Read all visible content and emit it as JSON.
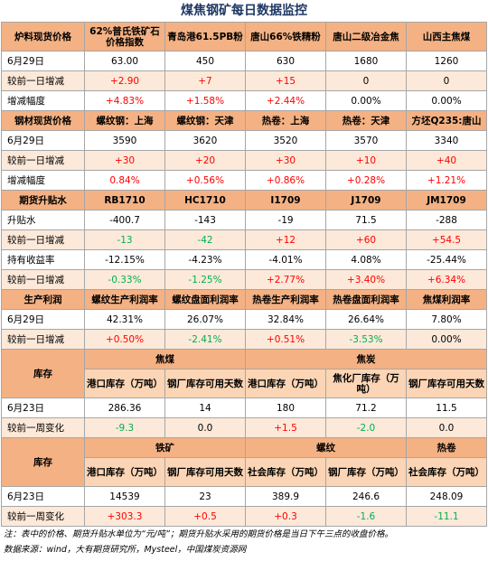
{
  "title": "煤焦钢矿每日数据监控",
  "sections": [
    {
      "header": [
        "炉料现货价格",
        "62%普氏铁矿石价格指数",
        "青岛港61.5PB粉",
        "唐山66%铁精粉",
        "唐山二级冶金焦",
        "山西主焦煤"
      ],
      "rows": [
        {
          "cells": [
            "6月29日",
            "63.00",
            "450",
            "630",
            "1680",
            "1260"
          ],
          "colors": [
            "#000000",
            "#000000",
            "#000000",
            "#000000",
            "#000000",
            "#000000"
          ]
        },
        {
          "cells": [
            "较前一日增减",
            "+2.90",
            "+7",
            "+15",
            "0",
            "0"
          ],
          "colors": [
            "#000000",
            "#ff0000",
            "#ff0000",
            "#ff0000",
            "#000000",
            "#000000"
          ]
        },
        {
          "cells": [
            "增减幅度",
            "+4.83%",
            "+1.58%",
            "+2.44%",
            "0.00%",
            "0.00%"
          ],
          "colors": [
            "#000000",
            "#ff0000",
            "#ff0000",
            "#ff0000",
            "#000000",
            "#000000"
          ]
        }
      ]
    },
    {
      "header": [
        "钢材现货价格",
        "螺纹钢：上海",
        "螺纹钢：天津",
        "热卷：上海",
        "热卷：天津",
        "方坯Q235:唐山"
      ],
      "rows": [
        {
          "cells": [
            "6月29日",
            "3590",
            "3620",
            "3520",
            "3570",
            "3340"
          ],
          "colors": [
            "#000000",
            "#000000",
            "#000000",
            "#000000",
            "#000000",
            "#000000"
          ]
        },
        {
          "cells": [
            "较前一日增减",
            "+30",
            "+20",
            "+30",
            "+10",
            "+40"
          ],
          "colors": [
            "#000000",
            "#ff0000",
            "#ff0000",
            "#ff0000",
            "#ff0000",
            "#ff0000"
          ]
        },
        {
          "cells": [
            "增减幅度",
            "0.84%",
            "+0.56%",
            "+0.86%",
            "+0.28%",
            "+1.21%"
          ],
          "colors": [
            "#000000",
            "#ff0000",
            "#ff0000",
            "#ff0000",
            "#ff0000",
            "#ff0000"
          ]
        }
      ]
    },
    {
      "header": [
        "期货升贴水",
        "RB1710",
        "HC1710",
        "I1709",
        "J1709",
        "JM1709"
      ],
      "rows": [
        {
          "cells": [
            "升贴水",
            "-400.7",
            "-143",
            "-19",
            "71.5",
            "-288"
          ],
          "colors": [
            "#000000",
            "#000000",
            "#000000",
            "#000000",
            "#000000",
            "#000000"
          ]
        },
        {
          "cells": [
            "较前一日增减",
            "-13",
            "-42",
            "+12",
            "+60",
            "+54.5"
          ],
          "colors": [
            "#000000",
            "#00b050",
            "#00b050",
            "#ff0000",
            "#ff0000",
            "#ff0000"
          ]
        },
        {
          "cells": [
            "持有收益率",
            "-12.15%",
            "-4.23%",
            "-4.01%",
            "4.08%",
            "-25.44%"
          ],
          "colors": [
            "#000000",
            "#000000",
            "#000000",
            "#000000",
            "#000000",
            "#000000"
          ]
        },
        {
          "cells": [
            "较前一日增减",
            "-0.33%",
            "-1.25%",
            "+2.77%",
            "+3.40%",
            "+6.34%"
          ],
          "colors": [
            "#000000",
            "#00b050",
            "#00b050",
            "#ff0000",
            "#ff0000",
            "#ff0000"
          ]
        }
      ]
    },
    {
      "header": [
        "生产利润",
        "螺纹生产利润率",
        "螺纹盘面利润率",
        "热卷生产利润率",
        "热卷盘面利润率",
        "焦煤利润率"
      ],
      "rows": [
        {
          "cells": [
            "6月29日",
            "42.31%",
            "26.07%",
            "32.84%",
            "26.64%",
            "7.80%"
          ],
          "colors": [
            "#000000",
            "#000000",
            "#000000",
            "#000000",
            "#000000",
            "#000000"
          ]
        },
        {
          "cells": [
            "较前一日增减",
            "+0.50%",
            "-2.41%",
            "+0.51%",
            "-3.53%",
            "0.00%"
          ],
          "colors": [
            "#000000",
            "#ff0000",
            "#00b050",
            "#ff0000",
            "#00b050",
            "#000000"
          ]
        }
      ]
    },
    {
      "header": [
        "库存"
      ],
      "groups": [
        {
          "label": "焦煤",
          "columns": [
            "港口库存（万吨）",
            "钢厂库存可用天数"
          ]
        },
        {
          "label": "焦炭",
          "columns": [
            "港口库存（万吨）",
            "焦化厂库存（万吨）",
            "钢厂库存可用天数"
          ]
        }
      ],
      "rows": [
        {
          "cells": [
            "6月23日",
            "286.36",
            "14",
            "180",
            "71.2",
            "11.5"
          ],
          "colors": [
            "#000000",
            "#000000",
            "#000000",
            "#000000",
            "#000000",
            "#000000"
          ]
        },
        {
          "cells": [
            "较前一周变化",
            "-9.3",
            "0.0",
            "+1.5",
            "-2.0",
            "0.0"
          ],
          "colors": [
            "#000000",
            "#00b050",
            "#000000",
            "#ff0000",
            "#00b050",
            "#000000"
          ]
        }
      ]
    },
    {
      "header": [
        "库存"
      ],
      "groups": [
        {
          "label": "铁矿",
          "columns": [
            "港口库存（万吨）",
            "钢厂库存可用天数"
          ]
        },
        {
          "label": "螺纹",
          "columns": [
            "社会库存（万吨）",
            "钢厂库存（万吨）"
          ]
        },
        {
          "label": "热卷",
          "columns": [
            "社会库存（万吨）"
          ]
        }
      ],
      "rows": [
        {
          "cells": [
            "6月23日",
            "14539",
            "23",
            "389.9",
            "246.6",
            "248.09"
          ],
          "colors": [
            "#000000",
            "#000000",
            "#000000",
            "#000000",
            "#000000",
            "#000000"
          ]
        },
        {
          "cells": [
            "较前一周变化",
            "+303.3",
            "+0.5",
            "+0.3",
            "-1.6",
            "-11.1"
          ],
          "colors": [
            "#000000",
            "#ff0000",
            "#ff0000",
            "#ff0000",
            "#00b050",
            "#00b050"
          ]
        }
      ]
    }
  ],
  "notes": [
    "注：表中的价格、期货升贴水单位为“元/吨”；期货升贴水采用的期货价格是当日下午三点的收盘价格。",
    "数据来源：wind，大有期货研究所，Mysteel，中国煤炭资源网"
  ]
}
